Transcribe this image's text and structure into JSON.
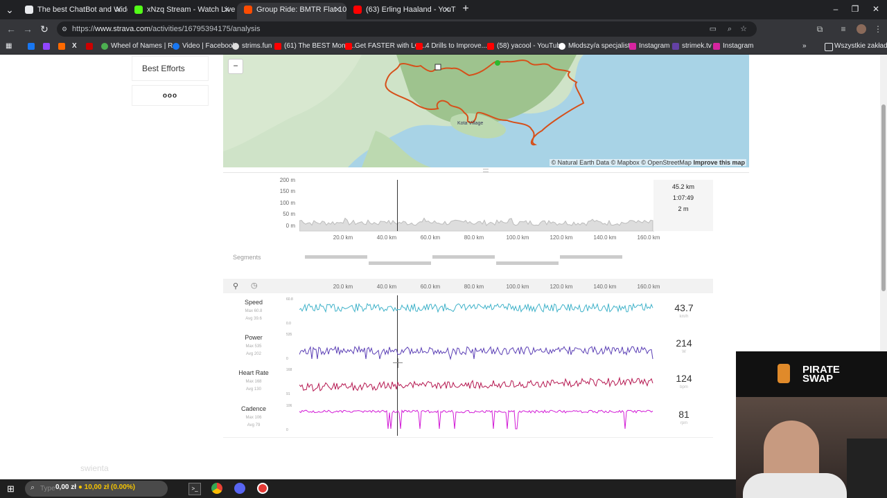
{
  "browser": {
    "tabs": [
      {
        "title": "The best ChatBot and Widgets",
        "icon_color": "#e8eaed",
        "active": false
      },
      {
        "title": "xNzq Stream - Watch Live on K",
        "icon_color": "#53fc18",
        "active": false
      },
      {
        "title": "Group Ride: BMTR Flat 100 (Mi",
        "icon_color": "#fc4c02",
        "active": true
      },
      {
        "title": "(63) Erling Haaland - YouTube",
        "icon_color": "#ff0000",
        "active": false
      }
    ],
    "url_prefix": "https://",
    "url_host": "www.strava.com",
    "url_path": "/activities/16795394175/analysis",
    "bookmarks": [
      {
        "label": "",
        "color": "#1877f2"
      },
      {
        "label": "",
        "color": "#9146ff"
      },
      {
        "label": "",
        "color": "#ff6a00"
      },
      {
        "label": "",
        "color": "#ffffff"
      },
      {
        "label": "",
        "color": "#cc0000"
      },
      {
        "label": "Wheel of Names | R...",
        "color": "#4caf50"
      },
      {
        "label": "Video | Facebook",
        "color": "#1877f2"
      },
      {
        "label": "strims.fun",
        "color": "#ffffff"
      },
      {
        "label": "(61) The BEST Mone...",
        "color": "#ff0000"
      },
      {
        "label": "Get FASTER with LO...",
        "color": "#ff0000"
      },
      {
        "label": "4 Drills to Improve...",
        "color": "#ff0000"
      },
      {
        "label": "(58) yacool - YouTube",
        "color": "#ff0000"
      },
      {
        "label": "Młodszy/a specjalist...",
        "color": "#ffffff"
      },
      {
        "label": "Instagram",
        "color": "#d6249f"
      },
      {
        "label": "strimek.tv",
        "color": "#6441a5"
      },
      {
        "label": "Instagram",
        "color": "#d6249f"
      }
    ],
    "all_bookmarks": "Wszystkie zakładki"
  },
  "sidebar": {
    "best_efforts": "Best Efforts",
    "more": "ooo"
  },
  "map": {
    "zoom_out": "−",
    "place": "Kota Village",
    "attribution": "© Natural Earth Data © Mapbox © OpenStreetMap",
    "improve": "Improve this map"
  },
  "elevation": {
    "y_ticks": [
      "200 m",
      "150 m",
      "100 m",
      "50 m",
      "0 m"
    ],
    "x_ticks": [
      "20.0 km",
      "40.0 km",
      "60.0 km",
      "80.0 km",
      "100.0 km",
      "120.0 km",
      "140.0 km",
      "160.0 km"
    ],
    "hover_distance": "45.2 km",
    "hover_time": "1:07:49",
    "hover_elevation": "2 m"
  },
  "segments": {
    "label": "Segments"
  },
  "streams": {
    "x_ticks": [
      "20.0 km",
      "40.0 km",
      "60.0 km",
      "80.0 km",
      "100.0 km",
      "120.0 km",
      "140.0 km",
      "160.0 km"
    ],
    "items": [
      {
        "name": "Speed",
        "max": "Max 60.8",
        "avg": "Avg 39.6",
        "scale_top": "60.8",
        "scale_bottom": "0.0",
        "value": "43.7",
        "unit": "km/h",
        "color": "#3fb2c9"
      },
      {
        "name": "Power",
        "max": "Max 535",
        "avg": "Avg 202",
        "scale_top": "535",
        "scale_bottom": "0",
        "value": "214",
        "unit": "W",
        "color": "#5b3fb5"
      },
      {
        "name": "Heart Rate",
        "max": "Max 168",
        "avg": "Avg 130",
        "scale_top": "168",
        "scale_bottom": "91",
        "value": "124",
        "unit": "bpm",
        "color": "#b5164f"
      },
      {
        "name": "Cadence",
        "max": "Max 106",
        "avg": "Avg 79",
        "scale_top": "106",
        "scale_bottom": "0",
        "value": "81",
        "unit": "rpm",
        "color": "#d21ad6"
      }
    ]
  },
  "overlay": {
    "watermark": "swienta",
    "ticker": "0,00 zł",
    "ticker_change": "10,00 zł (0.00%)",
    "search_placeholder": "Type here to search",
    "brand_top": "PIRATE",
    "brand_bottom": "SWAP"
  }
}
